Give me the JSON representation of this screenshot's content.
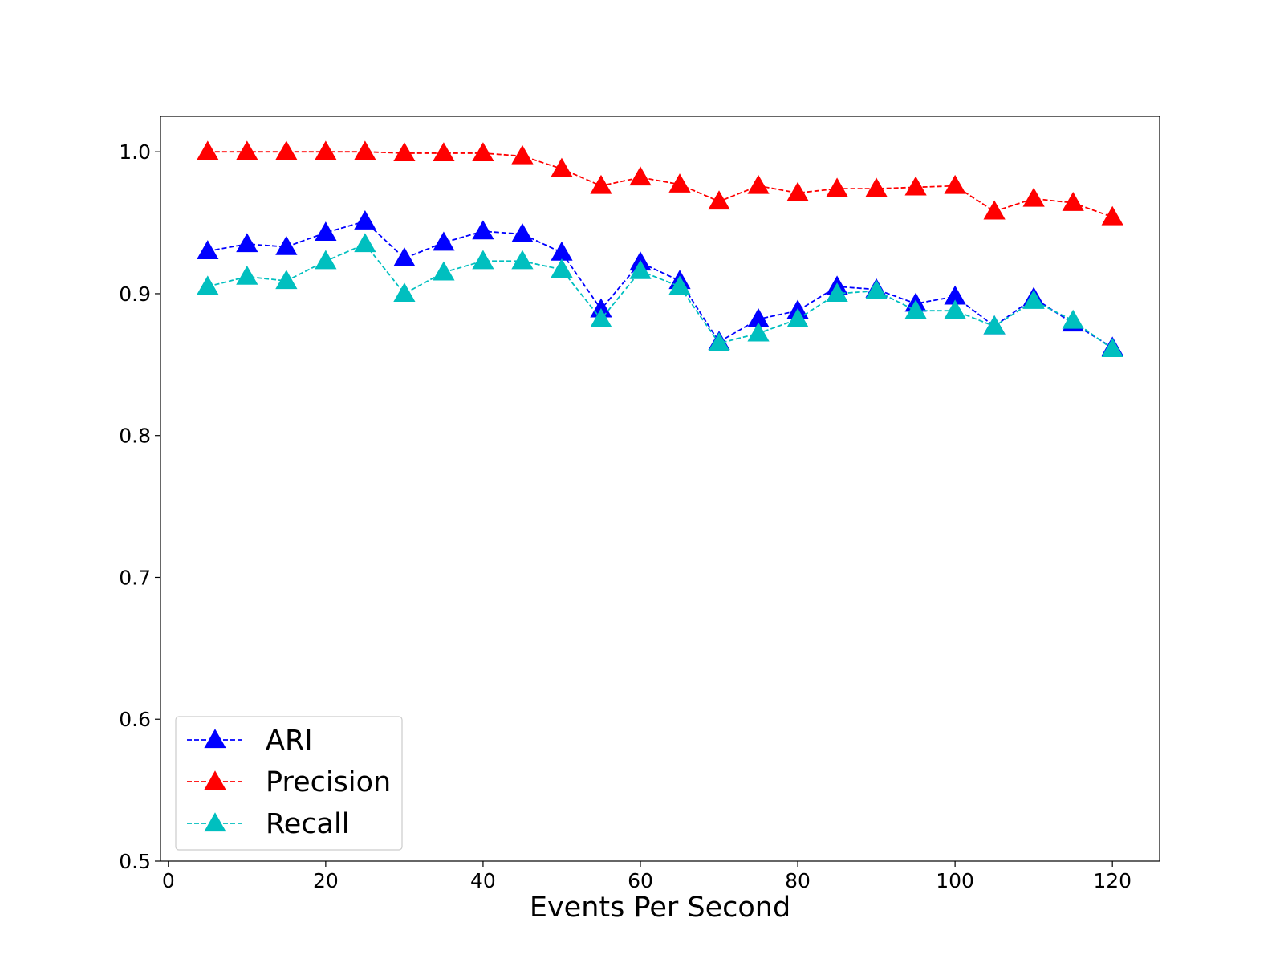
{
  "chart_data": {
    "type": "line",
    "title": "",
    "xlabel": "Events Per Second",
    "ylabel": "",
    "xlim": [
      -1,
      126
    ],
    "ylim": [
      0.5,
      1.025
    ],
    "x_ticks": [
      0,
      20,
      40,
      60,
      80,
      100,
      120
    ],
    "x_tick_labels": [
      "0",
      "20",
      "40",
      "60",
      "80",
      "100",
      "120"
    ],
    "y_ticks": [
      0.5,
      0.6,
      0.7,
      0.8,
      0.9,
      1.0
    ],
    "y_tick_labels": [
      "0.5",
      "0.6",
      "0.7",
      "0.8",
      "0.9",
      "1.0"
    ],
    "grid": false,
    "legend_position": "lower-left",
    "x": [
      5,
      10,
      15,
      20,
      25,
      30,
      35,
      40,
      45,
      50,
      55,
      60,
      65,
      70,
      75,
      80,
      85,
      90,
      95,
      100,
      105,
      110,
      115,
      120
    ],
    "series": [
      {
        "name": "ARI",
        "color": "#0000ff",
        "marker": "triangle-up",
        "line_style": "dashed",
        "values": [
          0.93,
          0.935,
          0.933,
          0.943,
          0.951,
          0.925,
          0.936,
          0.944,
          0.942,
          0.929,
          0.889,
          0.922,
          0.909,
          0.866,
          0.882,
          0.888,
          0.905,
          0.903,
          0.893,
          0.898,
          0.877,
          0.897,
          0.879,
          0.862
        ]
      },
      {
        "name": "Precision",
        "color": "#ff0000",
        "marker": "triangle-up",
        "line_style": "dashed",
        "values": [
          1.0,
          1.0,
          1.0,
          1.0,
          1.0,
          0.999,
          0.999,
          0.999,
          0.997,
          0.988,
          0.976,
          0.982,
          0.977,
          0.965,
          0.976,
          0.971,
          0.974,
          0.974,
          0.975,
          0.976,
          0.958,
          0.967,
          0.964,
          0.954
        ]
      },
      {
        "name": "Recall",
        "color": "#00bfbf",
        "marker": "triangle-up",
        "line_style": "dashed",
        "values": [
          0.905,
          0.912,
          0.909,
          0.923,
          0.935,
          0.9,
          0.915,
          0.923,
          0.923,
          0.917,
          0.882,
          0.916,
          0.905,
          0.865,
          0.872,
          0.882,
          0.9,
          0.902,
          0.888,
          0.888,
          0.877,
          0.895,
          0.881,
          0.861
        ]
      }
    ]
  }
}
